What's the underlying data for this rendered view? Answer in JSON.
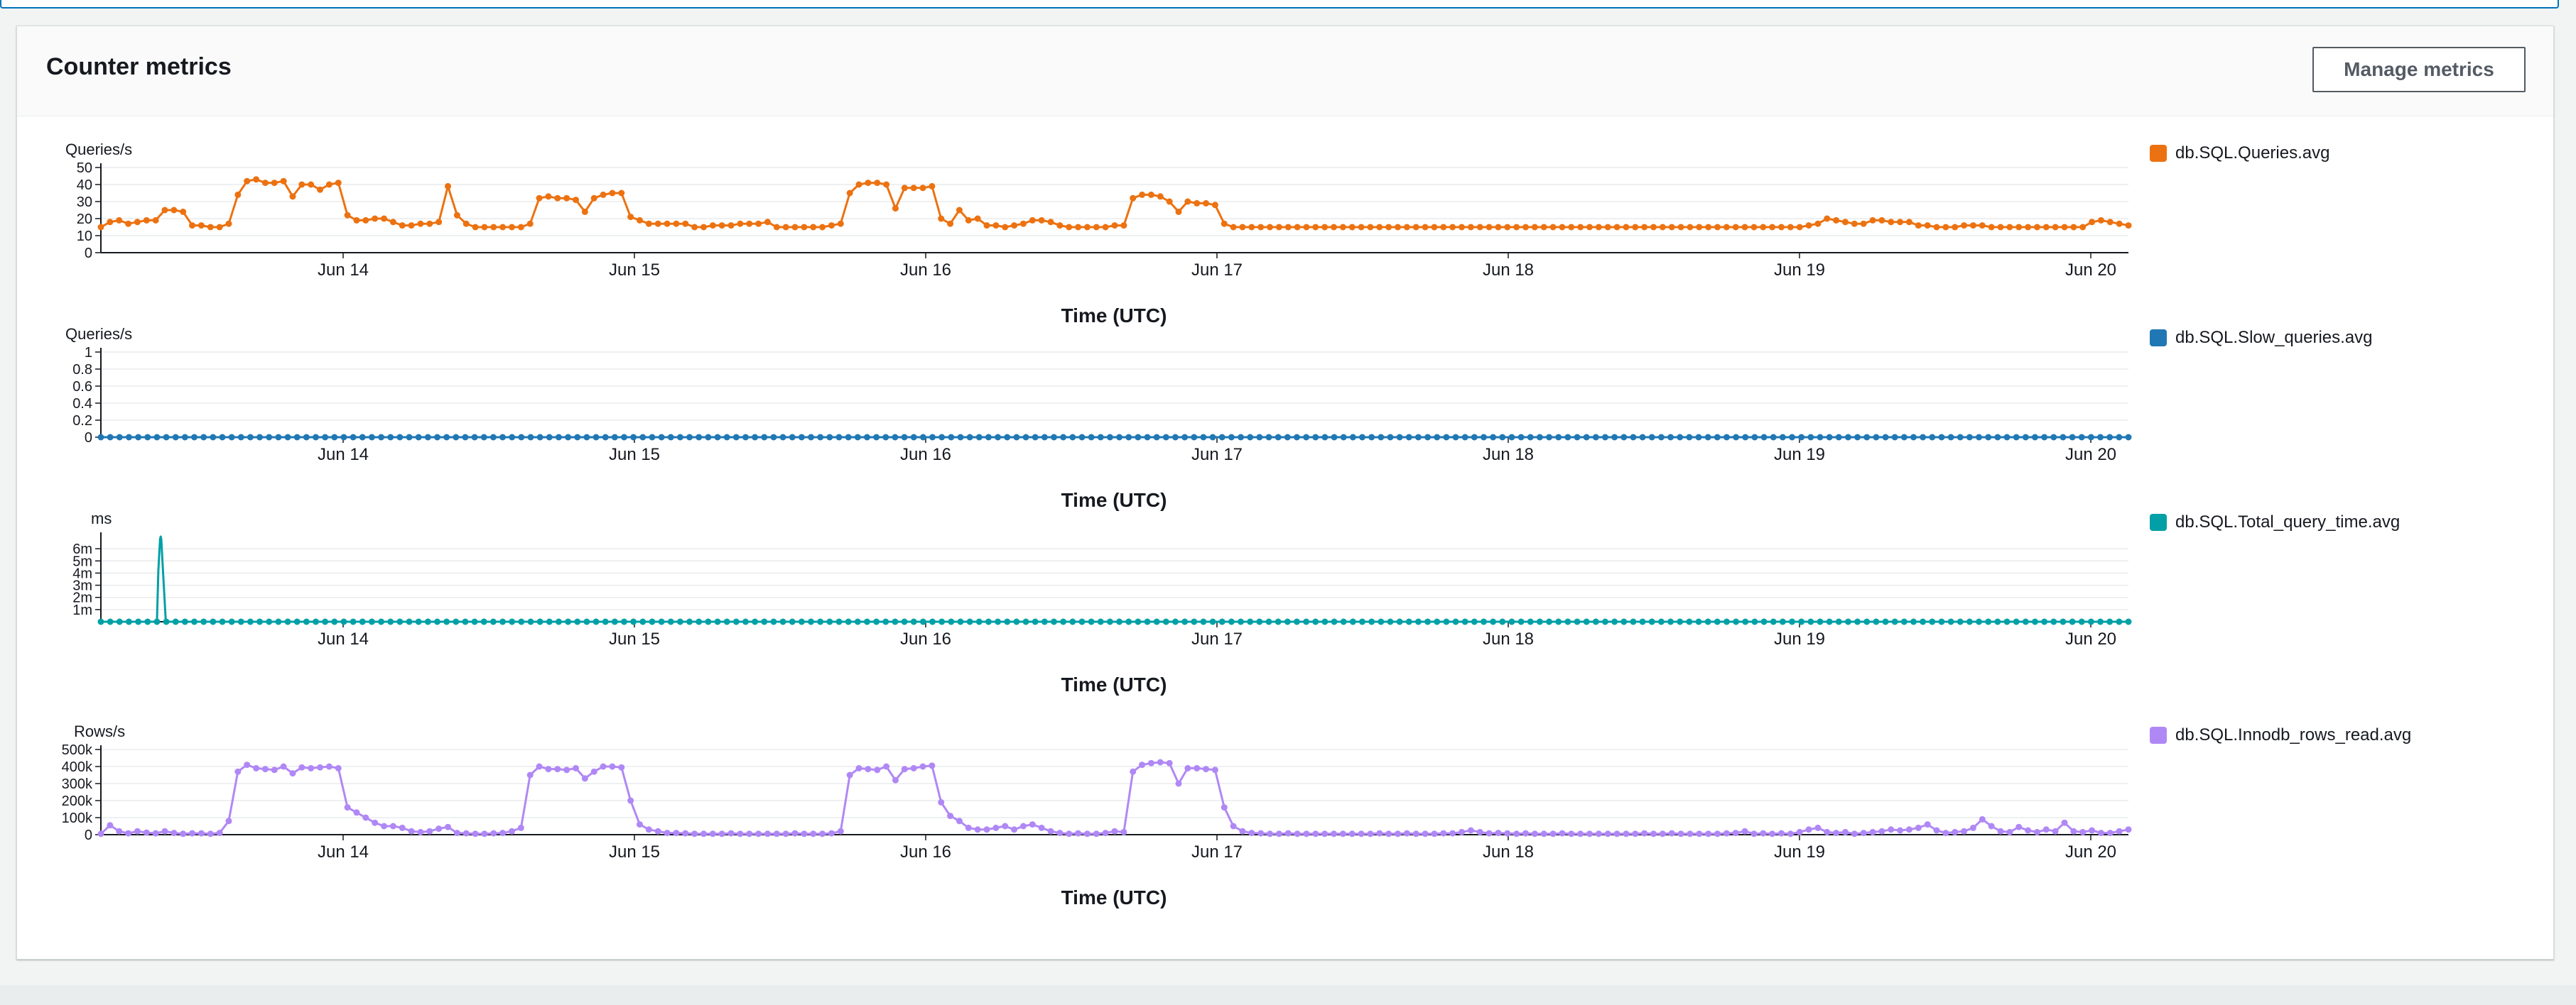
{
  "panel": {
    "title": "Counter metrics",
    "manage_button": "Manage metrics"
  },
  "x_ticks": [
    "Jun 14",
    "Jun 15",
    "Jun 16",
    "Jun 17",
    "Jun 18",
    "Jun 19",
    "Jun 20"
  ],
  "chart_data": [
    {
      "type": "line",
      "unit_label": "Queries/s",
      "xlabel": "Time (UTC)",
      "series": [
        {
          "name": "db.SQL.Queries.avg",
          "color": "#ec7211",
          "values": [
            15,
            18,
            19,
            17,
            18,
            19,
            19,
            25,
            25,
            24,
            16,
            16,
            15,
            15,
            17,
            34,
            42,
            43,
            41,
            41,
            42,
            33,
            40,
            40,
            37,
            40,
            41,
            22,
            19,
            19,
            20,
            20,
            18,
            16,
            16,
            17,
            17,
            18,
            39,
            22,
            17,
            15,
            15,
            15,
            15,
            15,
            15,
            17,
            32,
            33,
            32,
            32,
            31,
            24,
            32,
            34,
            35,
            35,
            21,
            19,
            17,
            17,
            17,
            17,
            17,
            15,
            15,
            16,
            16,
            16,
            17,
            17,
            17,
            18,
            15,
            15,
            15,
            15,
            15,
            15,
            16,
            17,
            35,
            40,
            41,
            41,
            40,
            26,
            38,
            38,
            38,
            39,
            20,
            17,
            25,
            19,
            20,
            16,
            16,
            15,
            16,
            17,
            19,
            19,
            18,
            16,
            15,
            15,
            15,
            15,
            15,
            16,
            16,
            32,
            34,
            34,
            33,
            30,
            24,
            30,
            29,
            29,
            28,
            17,
            15,
            15,
            15,
            15,
            15,
            15,
            15,
            15,
            15,
            15,
            15,
            15,
            15,
            15,
            15,
            15,
            15,
            15,
            15,
            15,
            15,
            15,
            15,
            15,
            15,
            15,
            15,
            15,
            15,
            15,
            15,
            15,
            15,
            15,
            15,
            15,
            15,
            15,
            15,
            15,
            15,
            15,
            15,
            15,
            15,
            15,
            15,
            15,
            15,
            15,
            15,
            15,
            15,
            15,
            15,
            15,
            15,
            15,
            15,
            15,
            15,
            15,
            15,
            16,
            17,
            20,
            19,
            18,
            17,
            17,
            19,
            19,
            18,
            18,
            18,
            16,
            16,
            15,
            15,
            15,
            16,
            16,
            16,
            15,
            15,
            15,
            15,
            15,
            15,
            15,
            15,
            15,
            15,
            15,
            18,
            19,
            18,
            17,
            16
          ]
        }
      ],
      "ylim": [
        0,
        50
      ],
      "y_ticks": [
        {
          "v": 0,
          "label": "0"
        },
        {
          "v": 10,
          "label": "10"
        },
        {
          "v": 20,
          "label": "20"
        },
        {
          "v": 30,
          "label": "30"
        },
        {
          "v": 40,
          "label": "40"
        },
        {
          "v": 50,
          "label": "50"
        }
      ]
    },
    {
      "type": "line",
      "unit_label": "Queries/s",
      "xlabel": "Time (UTC)",
      "series": [
        {
          "name": "db.SQL.Slow_queries.avg",
          "color": "#1f78b4",
          "values": [
            0,
            0,
            0,
            0,
            0,
            0,
            0,
            0,
            0,
            0,
            0,
            0,
            0,
            0,
            0,
            0,
            0,
            0,
            0,
            0,
            0,
            0,
            0,
            0,
            0,
            0,
            0,
            0,
            0,
            0,
            0,
            0,
            0,
            0,
            0,
            0,
            0,
            0,
            0,
            0,
            0,
            0,
            0,
            0,
            0,
            0,
            0,
            0,
            0,
            0,
            0,
            0,
            0,
            0,
            0,
            0,
            0,
            0,
            0,
            0,
            0,
            0,
            0,
            0,
            0,
            0,
            0,
            0,
            0,
            0,
            0,
            0,
            0,
            0,
            0,
            0,
            0,
            0,
            0,
            0,
            0,
            0,
            0,
            0,
            0,
            0,
            0,
            0,
            0,
            0,
            0,
            0,
            0,
            0,
            0,
            0,
            0,
            0,
            0,
            0,
            0,
            0,
            0,
            0,
            0,
            0,
            0,
            0,
            0,
            0,
            0,
            0,
            0,
            0,
            0,
            0,
            0,
            0,
            0,
            0,
            0,
            0,
            0,
            0,
            0,
            0,
            0,
            0,
            0,
            0,
            0,
            0,
            0,
            0,
            0,
            0,
            0,
            0,
            0,
            0,
            0,
            0,
            0,
            0,
            0,
            0,
            0,
            0,
            0,
            0,
            0,
            0,
            0,
            0,
            0,
            0,
            0,
            0,
            0,
            0,
            0,
            0,
            0,
            0,
            0,
            0,
            0,
            0,
            0,
            0,
            0,
            0,
            0,
            0,
            0,
            0,
            0,
            0,
            0,
            0,
            0,
            0,
            0,
            0,
            0,
            0,
            0,
            0,
            0,
            0,
            0,
            0,
            0,
            0,
            0,
            0,
            0,
            0,
            0,
            0,
            0,
            0,
            0,
            0,
            0,
            0,
            0,
            0,
            0,
            0,
            0,
            0,
            0,
            0,
            0,
            0,
            0,
            0
          ]
        }
      ],
      "ylim": [
        0,
        1
      ],
      "y_ticks": [
        {
          "v": 0,
          "label": "0"
        },
        {
          "v": 0.2,
          "label": "0.2"
        },
        {
          "v": 0.4,
          "label": "0.4"
        },
        {
          "v": 0.6,
          "label": "0.6"
        },
        {
          "v": 0.8,
          "label": "0.8"
        },
        {
          "v": 1,
          "label": "1"
        }
      ]
    },
    {
      "type": "line",
      "unit_label": "ms",
      "xlabel": "Time (UTC)",
      "series": [
        {
          "name": "db.SQL.Total_query_time.avg",
          "color": "#01a0a6",
          "values": [
            0,
            0,
            0,
            0,
            0,
            0,
            0,
            0,
            0,
            0,
            0,
            0,
            0,
            0,
            0,
            0,
            0,
            0,
            0,
            0,
            0,
            0,
            0,
            0,
            0,
            0,
            0,
            0,
            0,
            0,
            0,
            0,
            0,
            0,
            0,
            0,
            0,
            0,
            0,
            0,
            0,
            0,
            0,
            0,
            0,
            0,
            0,
            0,
            0,
            0,
            0,
            0,
            0,
            0,
            0,
            0,
            0,
            0,
            0,
            0,
            0,
            0,
            0,
            0,
            0,
            0,
            0,
            0,
            0,
            0,
            0,
            0,
            0,
            0,
            0,
            0,
            0,
            0,
            0,
            0,
            0,
            0,
            0,
            0,
            0,
            0,
            0,
            0,
            0,
            0,
            0,
            0,
            0,
            0,
            0,
            0,
            0,
            0,
            0,
            0,
            0,
            0,
            0,
            0,
            0,
            0,
            0,
            0,
            0,
            0,
            0,
            0,
            0,
            0,
            0,
            0,
            0,
            0,
            0,
            0,
            0,
            0,
            0,
            0,
            0,
            0,
            0,
            0,
            0,
            0,
            0,
            0,
            0,
            0,
            0,
            0,
            0,
            0,
            0,
            0,
            0,
            0,
            0,
            0,
            0,
            0,
            0,
            0,
            0,
            0,
            0,
            0,
            0,
            0,
            0,
            0,
            0,
            0,
            0,
            0,
            0,
            0,
            0,
            0,
            0,
            0,
            0,
            0,
            0,
            0,
            0,
            0,
            0,
            0,
            0,
            0,
            0,
            0,
            0,
            0,
            0,
            0,
            0,
            0,
            0,
            0,
            0,
            0,
            0,
            0,
            0,
            0,
            0,
            0,
            0,
            0,
            0,
            0,
            0,
            0,
            0,
            0,
            0,
            0,
            0,
            0,
            0,
            0,
            0,
            0,
            0,
            0,
            0,
            0,
            0,
            0,
            0,
            0
          ]
        }
      ],
      "spikes": [
        {
          "x_index": 6.4,
          "value": 7000000,
          "half_width": 0.55
        }
      ],
      "ylim": [
        0,
        7000000
      ],
      "y_ticks": [
        {
          "v": 1000000,
          "label": "1m"
        },
        {
          "v": 2000000,
          "label": "2m"
        },
        {
          "v": 3000000,
          "label": "3m"
        },
        {
          "v": 4000000,
          "label": "4m"
        },
        {
          "v": 5000000,
          "label": "5m"
        },
        {
          "v": 6000000,
          "label": "6m"
        }
      ]
    },
    {
      "type": "line",
      "unit_label": "Rows/s",
      "xlabel": "Time (UTC)",
      "series": [
        {
          "name": "db.SQL.Innodb_rows_read.avg",
          "color": "#b088f5",
          "values": [
            5000,
            55000,
            20000,
            8000,
            20000,
            12000,
            8000,
            20000,
            10000,
            5000,
            8000,
            8000,
            5000,
            10000,
            80000,
            370000,
            410000,
            390000,
            385000,
            380000,
            400000,
            360000,
            395000,
            390000,
            395000,
            400000,
            390000,
            160000,
            130000,
            100000,
            70000,
            50000,
            50000,
            40000,
            20000,
            15000,
            20000,
            35000,
            45000,
            10000,
            8000,
            5000,
            5000,
            8000,
            10000,
            20000,
            40000,
            350000,
            400000,
            385000,
            385000,
            380000,
            390000,
            330000,
            370000,
            400000,
            400000,
            395000,
            200000,
            60000,
            30000,
            20000,
            10000,
            10000,
            8000,
            5000,
            5000,
            5000,
            5000,
            8000,
            5000,
            5000,
            5000,
            5000,
            5000,
            5000,
            8000,
            5000,
            5000,
            5000,
            8000,
            20000,
            350000,
            390000,
            385000,
            380000,
            400000,
            320000,
            385000,
            390000,
            400000,
            405000,
            190000,
            110000,
            80000,
            40000,
            30000,
            30000,
            40000,
            50000,
            30000,
            50000,
            60000,
            40000,
            20000,
            10000,
            5000,
            8000,
            5000,
            5000,
            10000,
            20000,
            15000,
            370000,
            410000,
            420000,
            425000,
            420000,
            300000,
            390000,
            390000,
            385000,
            380000,
            160000,
            50000,
            20000,
            10000,
            8000,
            5000,
            5000,
            8000,
            5000,
            5000,
            5000,
            5000,
            5000,
            5000,
            5000,
            5000,
            5000,
            8000,
            5000,
            5000,
            8000,
            5000,
            5000,
            5000,
            8000,
            8000,
            15000,
            25000,
            15000,
            8000,
            10000,
            8000,
            5000,
            8000,
            5000,
            5000,
            5000,
            8000,
            5000,
            5000,
            5000,
            5000,
            5000,
            5000,
            5000,
            5000,
            8000,
            5000,
            5000,
            8000,
            5000,
            5000,
            5000,
            5000,
            5000,
            8000,
            10000,
            20000,
            5000,
            8000,
            5000,
            8000,
            5000,
            15000,
            30000,
            40000,
            15000,
            10000,
            15000,
            5000,
            10000,
            15000,
            20000,
            30000,
            25000,
            30000,
            40000,
            60000,
            25000,
            10000,
            15000,
            20000,
            40000,
            90000,
            50000,
            20000,
            15000,
            45000,
            25000,
            15000,
            30000,
            20000,
            70000,
            20000,
            15000,
            25000,
            10000,
            10000,
            20000,
            30000
          ]
        }
      ],
      "ylim": [
        0,
        500000
      ],
      "y_ticks": [
        {
          "v": 0,
          "label": "0"
        },
        {
          "v": 100000,
          "label": "100k"
        },
        {
          "v": 200000,
          "label": "200k"
        },
        {
          "v": 300000,
          "label": "300k"
        },
        {
          "v": 400000,
          "label": "400k"
        },
        {
          "v": 500000,
          "label": "500k"
        }
      ]
    }
  ]
}
